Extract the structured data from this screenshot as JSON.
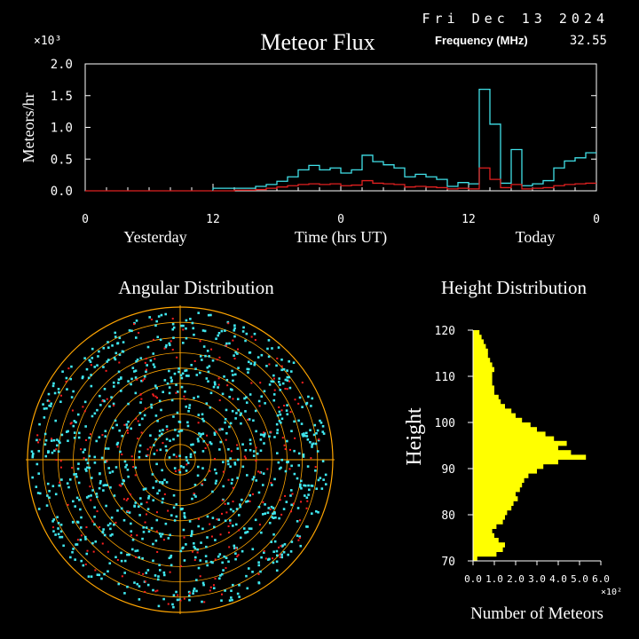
{
  "header": {
    "date": "Fri Dec 13 2024",
    "frequency_label": "Frequency (MHz)",
    "frequency_value": "32.55"
  },
  "colors": {
    "background": "#000000",
    "axis": "#ffffff",
    "flux_total": "#40e0e8",
    "flux_underdense": "#e02020",
    "height_bars": "#ffff00",
    "polar_points": "#40e8f0",
    "polar_points_secondary": "#ff2020",
    "polar_rings": "#ffa500"
  },
  "chart_data": [
    {
      "type": "line",
      "title": "Meteor Flux",
      "ylabel": "Meteors/hr",
      "xlabel": "Time (hrs UT)",
      "y_multiplier": "×10³",
      "ylim": [
        0,
        2.0
      ],
      "yticks": [
        "0.0",
        "0.5",
        "1.0",
        "1.5",
        "2.0"
      ],
      "xticks": [
        "0",
        "12",
        "0",
        "12",
        "0"
      ],
      "day_labels": [
        "Yesterday",
        "Today"
      ],
      "step": true,
      "x_hours": [
        12,
        13,
        14,
        15,
        16,
        17,
        18,
        19,
        20,
        21,
        22,
        23,
        24,
        25,
        26,
        27,
        28,
        29,
        30,
        31,
        32,
        33,
        34,
        35,
        36,
        37,
        38,
        39,
        40,
        41,
        42,
        43,
        44,
        45,
        46,
        47
      ],
      "series": [
        {
          "values": [
            0.04,
            0.04,
            0.04,
            0.04,
            0.07,
            0.1,
            0.15,
            0.22,
            0.33,
            0.4,
            0.33,
            0.36,
            0.28,
            0.33,
            0.56,
            0.46,
            0.41,
            0.36,
            0.22,
            0.26,
            0.22,
            0.18,
            0.07,
            0.13,
            0.11,
            1.6,
            1.05,
            0.12,
            0.65,
            0.08,
            0.11,
            0.16,
            0.36,
            0.47,
            0.52,
            0.6
          ]
        },
        {
          "values": [
            0.0,
            0.0,
            0.01,
            0.01,
            0.02,
            0.04,
            0.06,
            0.08,
            0.1,
            0.11,
            0.1,
            0.11,
            0.08,
            0.09,
            0.16,
            0.12,
            0.11,
            0.1,
            0.06,
            0.07,
            0.06,
            0.05,
            0.03,
            0.04,
            0.03,
            0.36,
            0.18,
            0.05,
            0.1,
            0.03,
            0.04,
            0.05,
            0.08,
            0.1,
            0.11,
            0.12
          ]
        }
      ]
    },
    {
      "type": "scatter",
      "title": "Angular Distribution",
      "rings": 5
    },
    {
      "type": "bar",
      "orientation": "horizontal",
      "title": "Height Distribution",
      "ylabel": "Height",
      "xlabel": "Number of Meteors",
      "x_multiplier": "×10²",
      "xlim": [
        0,
        6.0
      ],
      "ylim": [
        70,
        120
      ],
      "xticks": [
        "0.0",
        "1.0",
        "2.0",
        "3.0",
        "4.0",
        "5.0",
        "6.0"
      ],
      "yticks": [
        "70",
        "80",
        "90",
        "100",
        "110",
        "120"
      ],
      "heights": [
        70,
        71,
        72,
        73,
        74,
        75,
        76,
        77,
        78,
        79,
        80,
        81,
        82,
        83,
        84,
        85,
        86,
        87,
        88,
        89,
        90,
        91,
        92,
        93,
        94,
        95,
        96,
        97,
        98,
        99,
        100,
        101,
        102,
        103,
        104,
        105,
        106,
        107,
        108,
        109,
        110,
        111,
        112,
        113,
        114,
        115,
        116,
        117,
        118,
        119
      ],
      "values": [
        0.2,
        1.1,
        1.4,
        1.5,
        1.2,
        1.0,
        0.9,
        1.1,
        1.4,
        1.5,
        1.6,
        1.8,
        1.9,
        2.1,
        2.0,
        2.2,
        2.3,
        2.4,
        2.6,
        3.0,
        3.3,
        4.0,
        5.3,
        4.6,
        4.0,
        4.4,
        3.8,
        3.4,
        3.0,
        2.7,
        2.3,
        2.0,
        1.8,
        1.5,
        1.3,
        1.2,
        1.0,
        1.0,
        0.9,
        0.9,
        0.9,
        1.0,
        0.9,
        0.8,
        0.7,
        0.7,
        0.6,
        0.5,
        0.4,
        0.3
      ]
    }
  ]
}
